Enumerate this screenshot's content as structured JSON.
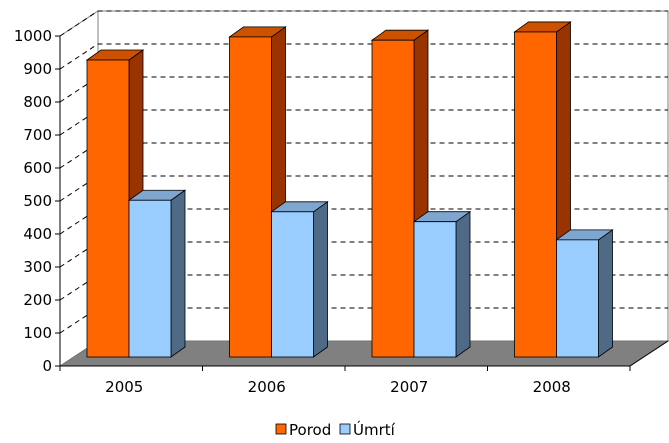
{
  "chart_data": {
    "type": "bar",
    "title": "",
    "xlabel": "",
    "ylabel": "",
    "categories": [
      "2005",
      "2006",
      "2007",
      "2008"
    ],
    "series": [
      {
        "name": "Porod",
        "values": [
          900,
          970,
          960,
          985
        ],
        "color": "#ff6600",
        "side_color": "#993300",
        "top_color": "#cc5200"
      },
      {
        "name": "Úmrtí",
        "values": [
          475,
          440,
          410,
          355
        ],
        "color": "#99ccff",
        "side_color": "#4f6a86",
        "top_color": "#7fa6cf"
      }
    ],
    "ylim": [
      0,
      1000
    ],
    "yticks": [
      0,
      100,
      200,
      300,
      400,
      500,
      600,
      700,
      800,
      900,
      1000
    ],
    "grid": true,
    "legend_position": "bottom"
  }
}
